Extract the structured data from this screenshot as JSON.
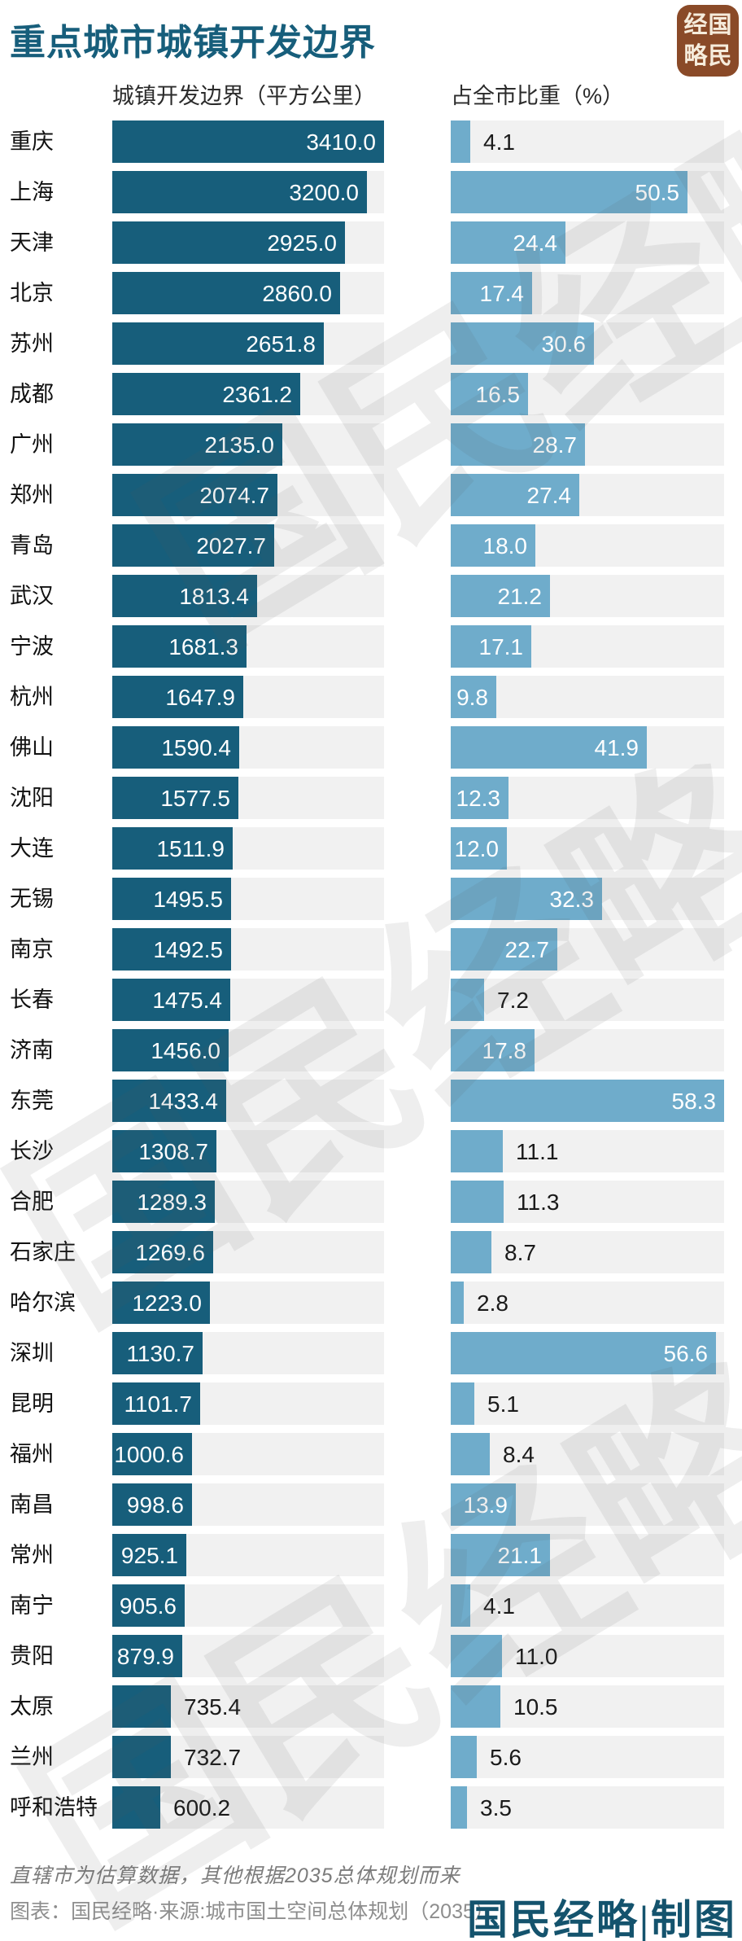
{
  "title": "重点城市城镇开发边界",
  "logo": {
    "chars": [
      "经",
      "国",
      "略",
      "民"
    ]
  },
  "columns": {
    "left_header": "城镇开发边界（平方公里）",
    "right_header": "占全市比重（%）"
  },
  "watermark": {
    "text": "国民经略"
  },
  "footer": {
    "footnote": "直辖市为估算数据，其他根据2035总体规划而来",
    "source": "图表：国民经略·来源:城市国土空间总体规划（2035）",
    "credit": "国民经略|制图"
  },
  "colors": {
    "area_bar": "#175E7B",
    "share_bar": "#6FACCB",
    "track": "#F1F1F1",
    "title": "#175E7B",
    "logo_bg": "#8A4A28",
    "credit": "#14536D"
  },
  "chart_data": {
    "type": "bar",
    "orientation": "horizontal",
    "title": "重点城市城镇开发边界",
    "series": [
      {
        "name": "城镇开发边界（平方公里）",
        "axis_max": 3410.0
      },
      {
        "name": "占全市比重（%）",
        "axis_max": 58.3
      }
    ],
    "rows": [
      {
        "city": "重庆",
        "area": 3410.0,
        "share": 4.1,
        "area_label_inside": true,
        "share_label_inside": false
      },
      {
        "city": "上海",
        "area": 3200.0,
        "share": 50.5,
        "area_label_inside": true,
        "share_label_inside": true
      },
      {
        "city": "天津",
        "area": 2925.0,
        "share": 24.4,
        "area_label_inside": true,
        "share_label_inside": true
      },
      {
        "city": "北京",
        "area": 2860.0,
        "share": 17.4,
        "area_label_inside": true,
        "share_label_inside": true
      },
      {
        "city": "苏州",
        "area": 2651.8,
        "share": 30.6,
        "area_label_inside": true,
        "share_label_inside": true
      },
      {
        "city": "成都",
        "area": 2361.2,
        "share": 16.5,
        "area_label_inside": true,
        "share_label_inside": true
      },
      {
        "city": "广州",
        "area": 2135.0,
        "share": 28.7,
        "area_label_inside": true,
        "share_label_inside": true
      },
      {
        "city": "郑州",
        "area": 2074.7,
        "share": 27.4,
        "area_label_inside": true,
        "share_label_inside": true
      },
      {
        "city": "青岛",
        "area": 2027.7,
        "share": 18.0,
        "area_label_inside": true,
        "share_label_inside": true
      },
      {
        "city": "武汉",
        "area": 1813.4,
        "share": 21.2,
        "area_label_inside": true,
        "share_label_inside": true
      },
      {
        "city": "宁波",
        "area": 1681.3,
        "share": 17.1,
        "area_label_inside": true,
        "share_label_inside": true
      },
      {
        "city": "杭州",
        "area": 1647.9,
        "share": 9.8,
        "area_label_inside": true,
        "share_label_inside": true
      },
      {
        "city": "佛山",
        "area": 1590.4,
        "share": 41.9,
        "area_label_inside": true,
        "share_label_inside": true
      },
      {
        "city": "沈阳",
        "area": 1577.5,
        "share": 12.3,
        "area_label_inside": true,
        "share_label_inside": true
      },
      {
        "city": "大连",
        "area": 1511.9,
        "share": 12.0,
        "area_label_inside": true,
        "share_label_inside": true
      },
      {
        "city": "无锡",
        "area": 1495.5,
        "share": 32.3,
        "area_label_inside": true,
        "share_label_inside": true
      },
      {
        "city": "南京",
        "area": 1492.5,
        "share": 22.7,
        "area_label_inside": true,
        "share_label_inside": true
      },
      {
        "city": "长春",
        "area": 1475.4,
        "share": 7.2,
        "area_label_inside": true,
        "share_label_inside": false
      },
      {
        "city": "济南",
        "area": 1456.0,
        "share": 17.8,
        "area_label_inside": true,
        "share_label_inside": true
      },
      {
        "city": "东莞",
        "area": 1433.4,
        "share": 58.3,
        "area_label_inside": true,
        "share_label_inside": true
      },
      {
        "city": "长沙",
        "area": 1308.7,
        "share": 11.1,
        "area_label_inside": true,
        "share_label_inside": false
      },
      {
        "city": "合肥",
        "area": 1289.3,
        "share": 11.3,
        "area_label_inside": true,
        "share_label_inside": false
      },
      {
        "city": "石家庄",
        "area": 1269.6,
        "share": 8.7,
        "area_label_inside": true,
        "share_label_inside": false
      },
      {
        "city": "哈尔滨",
        "area": 1223.0,
        "share": 2.8,
        "area_label_inside": true,
        "share_label_inside": false
      },
      {
        "city": "深圳",
        "area": 1130.7,
        "share": 56.6,
        "area_label_inside": true,
        "share_label_inside": true
      },
      {
        "city": "昆明",
        "area": 1101.7,
        "share": 5.1,
        "area_label_inside": true,
        "share_label_inside": false
      },
      {
        "city": "福州",
        "area": 1000.6,
        "share": 8.4,
        "area_label_inside": true,
        "share_label_inside": false
      },
      {
        "city": "南昌",
        "area": 998.6,
        "share": 13.9,
        "area_label_inside": true,
        "share_label_inside": true
      },
      {
        "city": "常州",
        "area": 925.1,
        "share": 21.1,
        "area_label_inside": true,
        "share_label_inside": true
      },
      {
        "city": "南宁",
        "area": 905.6,
        "share": 4.1,
        "area_label_inside": true,
        "share_label_inside": false
      },
      {
        "city": "贵阳",
        "area": 879.9,
        "share": 11.0,
        "area_label_inside": true,
        "share_label_inside": false
      },
      {
        "city": "太原",
        "area": 735.4,
        "share": 10.5,
        "area_label_inside": false,
        "share_label_inside": false
      },
      {
        "city": "兰州",
        "area": 732.7,
        "share": 5.6,
        "area_label_inside": false,
        "share_label_inside": false
      },
      {
        "city": "呼和浩特",
        "area": 600.2,
        "share": 3.5,
        "area_label_inside": false,
        "share_label_inside": false
      }
    ]
  }
}
